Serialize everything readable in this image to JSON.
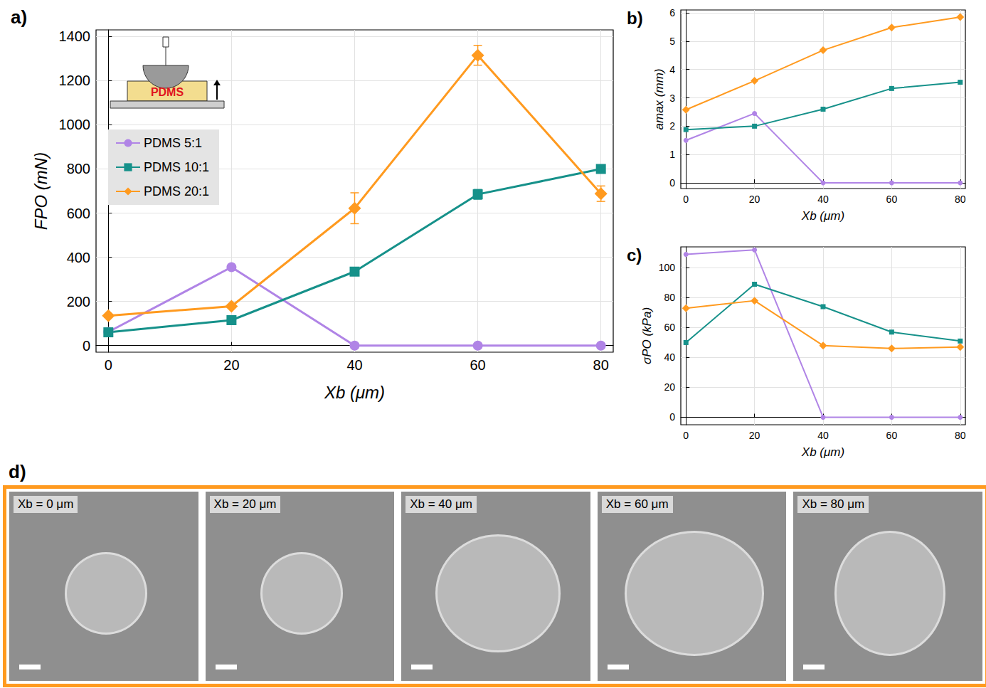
{
  "chart_data": [
    {
      "type": "line",
      "title": "a)",
      "x_label": "Xb (μm)",
      "y_label": "FPO (mN)",
      "x": [
        0,
        20,
        40,
        60,
        80
      ],
      "series": [
        {
          "name": "PDMS 5:1",
          "color": "#b084e6",
          "marker": "circle",
          "values": [
            62,
            355,
            0,
            0,
            0
          ]
        },
        {
          "name": "PDMS 10:1",
          "color": "#16918a",
          "marker": "square",
          "values": [
            60,
            115,
            335,
            685,
            800
          ],
          "errors": [
            5,
            6,
            8,
            22,
            10
          ]
        },
        {
          "name": "PDMS 20:1",
          "color": "#ff9a1f",
          "marker": "diamond",
          "values": [
            135,
            178,
            622,
            1315,
            688
          ],
          "errors": [
            6,
            6,
            70,
            45,
            35
          ]
        }
      ],
      "xlim": [
        -2,
        82
      ],
      "xticks": [
        0,
        20,
        40,
        60,
        80
      ],
      "ylim": [
        -30,
        1430
      ],
      "yticks": [
        0,
        200,
        400,
        600,
        800,
        1000,
        1200,
        1400
      ],
      "grid": true,
      "legend": "upper left",
      "annotations": [
        {
          "text": "PDMS"
        }
      ]
    },
    {
      "type": "line",
      "title": "b)",
      "x_label": "Xb (μm)",
      "y_label": "amax (mm)",
      "x": [
        0,
        20,
        40,
        60,
        80
      ],
      "series": [
        {
          "name": "PDMS 5:1",
          "color": "#b084e6",
          "marker": "circle",
          "values": [
            1.5,
            2.45,
            0,
            0,
            0
          ]
        },
        {
          "name": "PDMS 10:1",
          "color": "#16918a",
          "marker": "square",
          "values": [
            1.88,
            2.0,
            2.6,
            3.33,
            3.55
          ]
        },
        {
          "name": "PDMS 20:1",
          "color": "#ff9a1f",
          "marker": "diamond",
          "values": [
            2.58,
            3.6,
            4.68,
            5.48,
            5.85
          ]
        }
      ],
      "xlim": [
        -1.5,
        81.5
      ],
      "xticks": [
        0,
        20,
        40,
        60,
        80
      ],
      "ylim": [
        -0.2,
        6.1
      ],
      "yticks": [
        0,
        1,
        2,
        3,
        4,
        5,
        6
      ],
      "grid": true
    },
    {
      "type": "line",
      "title": "c)",
      "x_label": "Xb (μm)",
      "y_label": "σPO (kPa)",
      "x": [
        0,
        20,
        40,
        60,
        80
      ],
      "series": [
        {
          "name": "PDMS 5:1",
          "color": "#b084e6",
          "marker": "circle",
          "values": [
            109,
            112,
            0,
            0,
            0
          ]
        },
        {
          "name": "PDMS 10:1",
          "color": "#16918a",
          "marker": "square",
          "values": [
            50,
            89,
            74,
            57,
            51
          ]
        },
        {
          "name": "PDMS 20:1",
          "color": "#ff9a1f",
          "marker": "diamond",
          "values": [
            73,
            78,
            48,
            46,
            47
          ]
        }
      ],
      "xlim": [
        -1.5,
        81.5
      ],
      "xticks": [
        0,
        20,
        40,
        60,
        80
      ],
      "ylim": [
        -5,
        114
      ],
      "yticks": [
        0,
        20,
        40,
        60,
        80,
        100
      ],
      "grid": true
    }
  ],
  "images": {
    "title": "d)",
    "color": "#ff9a1f",
    "labels": [
      "Xb = 0 μm",
      "Xb = 20 μm",
      "Xb = 40 μm",
      "Xb = 60 μm",
      "Xb = 80 μm"
    ]
  }
}
